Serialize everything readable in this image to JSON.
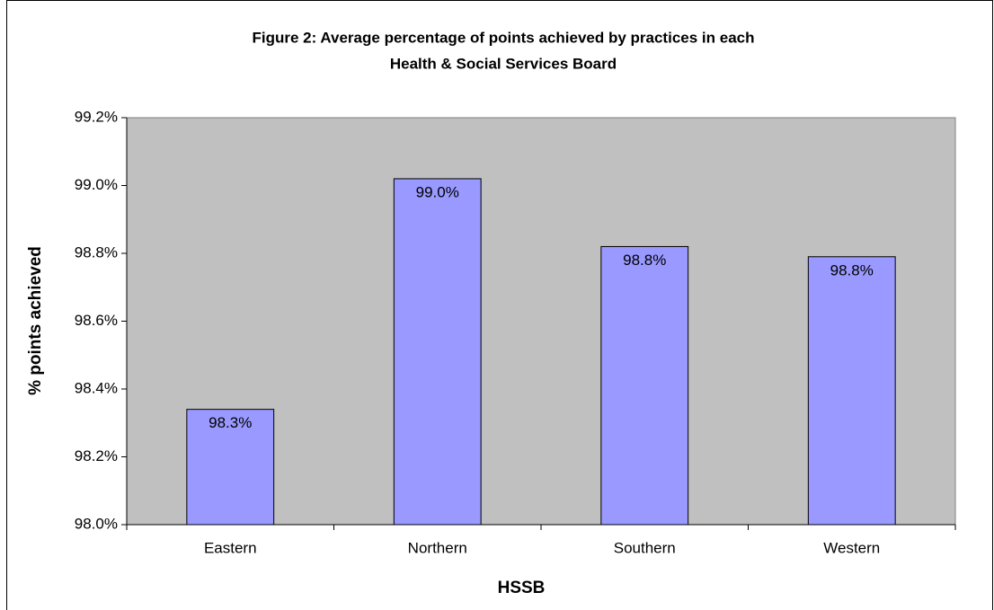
{
  "chart_data": {
    "type": "bar",
    "title": [
      "Figure 2: Average percentage of points achieved by practices in each",
      "Health & Social Services Board"
    ],
    "x_label": "HSSB",
    "y_label": "% points achieved",
    "categories": [
      "Eastern",
      "Northern",
      "Southern",
      "Western"
    ],
    "values": [
      98.34,
      99.02,
      98.82,
      98.79
    ],
    "value_labels": [
      "98.3%",
      "99.0%",
      "98.8%",
      "98.8%"
    ],
    "color": "#9999ff",
    "plot_background": "#c0c0c0",
    "ylim": [
      98.0,
      99.2
    ],
    "yticks": [
      {
        "value": 98.0,
        "label": "98.0%"
      },
      {
        "value": 98.2,
        "label": "98.2%"
      },
      {
        "value": 98.4,
        "label": "98.4%"
      },
      {
        "value": 98.6,
        "label": "98.6%"
      },
      {
        "value": 98.8,
        "label": "98.8%"
      },
      {
        "value": 99.0,
        "label": "99.0%"
      },
      {
        "value": 99.2,
        "label": "99.2%"
      }
    ],
    "grid": false
  }
}
